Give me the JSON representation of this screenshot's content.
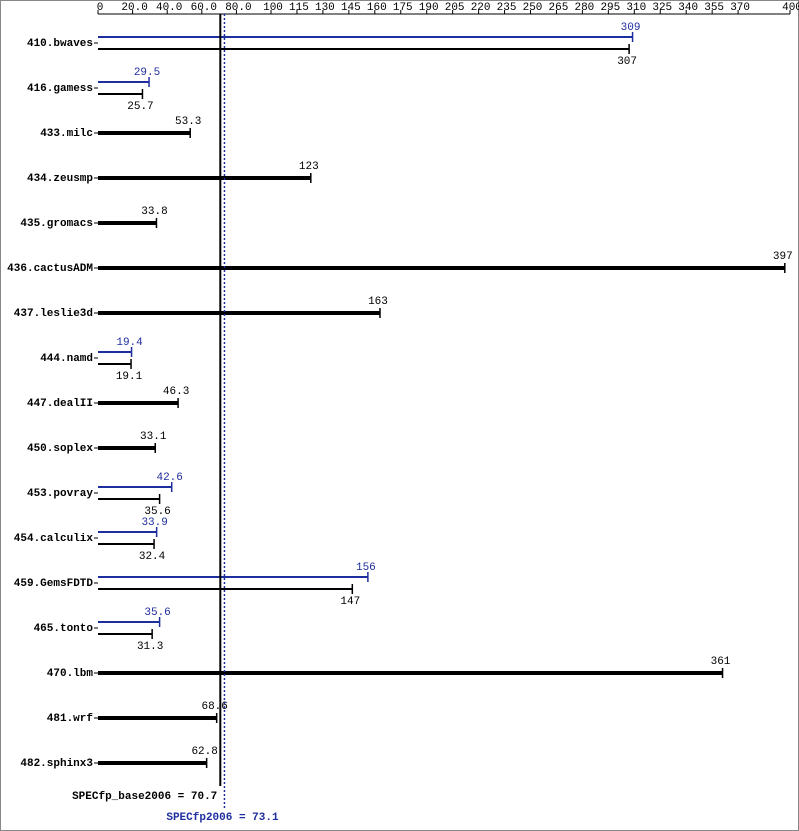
{
  "chart_data": {
    "type": "bar",
    "categories": [
      "410.bwaves",
      "416.gamess",
      "433.milc",
      "434.zeusmp",
      "435.gromacs",
      "436.cactusADM",
      "437.leslie3d",
      "444.namd",
      "447.dealII",
      "450.soplex",
      "453.povray",
      "454.calculix",
      "459.GemsFDTD",
      "465.tonto",
      "470.lbm",
      "481.wrf",
      "482.sphinx3"
    ],
    "series": [
      {
        "color": "#000000",
        "values": [
          307,
          25.7,
          53.3,
          123,
          33.8,
          397,
          163,
          19.1,
          46.3,
          33.1,
          35.6,
          32.4,
          147,
          31.3,
          361,
          68.6,
          62.8
        ]
      },
      {
        "color": "#1f2e9e",
        "values": [
          309,
          29.5,
          null,
          null,
          null,
          null,
          null,
          19.4,
          null,
          null,
          42.6,
          33.9,
          156,
          35.6,
          null,
          null,
          null
        ]
      }
    ],
    "xlim": [
      0,
      400
    ],
    "xticks": [
      0,
      {
        "value": 20,
        "label": "20.0"
      },
      {
        "value": 40,
        "label": "40.0"
      },
      {
        "value": 60,
        "label": "60.0"
      },
      {
        "value": 80,
        "label": "80.0"
      },
      100,
      115,
      130,
      145,
      160,
      175,
      190,
      205,
      220,
      235,
      250,
      265,
      280,
      295,
      310,
      325,
      340,
      355,
      370,
      400
    ],
    "reference_lines": [
      {
        "label": "SPECfp_base2006 = 70.7",
        "value": 70.7,
        "color": "#000000"
      },
      {
        "label": "SPECfp2006 = 73.1",
        "value": 73.1,
        "color": "#1f2e9e"
      }
    ]
  }
}
